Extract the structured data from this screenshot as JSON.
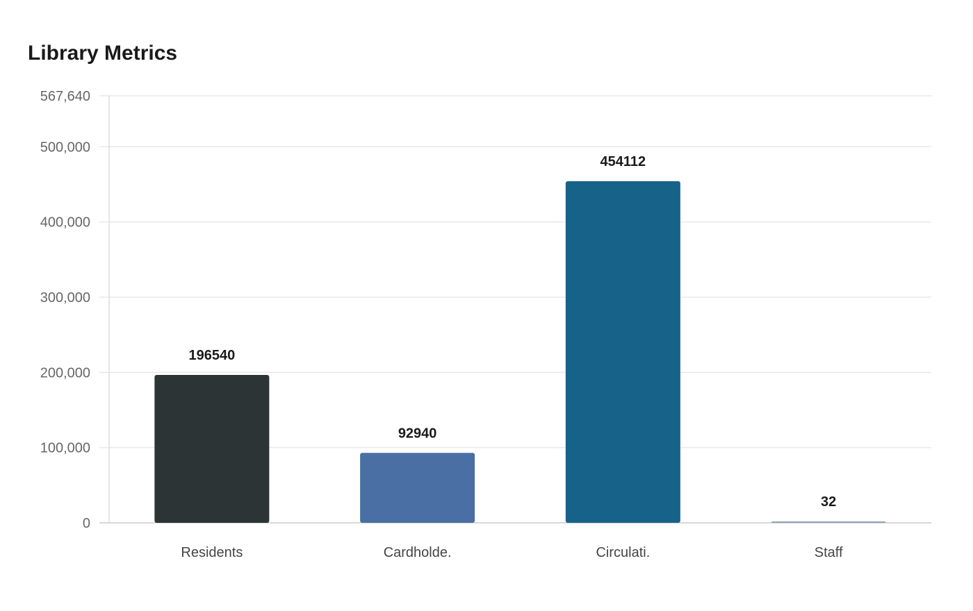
{
  "chart_data": {
    "type": "bar",
    "title": "Library Metrics",
    "categories": [
      "Residents",
      "Cardholde.",
      "Circulati.",
      "Staff"
    ],
    "values": [
      196540,
      92940,
      454112,
      32
    ],
    "colors": [
      "#2d3436",
      "#4a6fa5",
      "#176289",
      "#8fa3b0"
    ],
    "ylim": [
      0,
      567640
    ],
    "yticks": [
      0,
      100000,
      200000,
      300000,
      400000,
      500000,
      567640
    ],
    "ytick_labels": [
      "0",
      "100,000",
      "200,000",
      "300,000",
      "400,000",
      "500,000",
      "567,640"
    ],
    "data_labels": [
      "196540",
      "92940",
      "454112",
      "32"
    ],
    "grid": true,
    "xlabel": "",
    "ylabel": ""
  }
}
